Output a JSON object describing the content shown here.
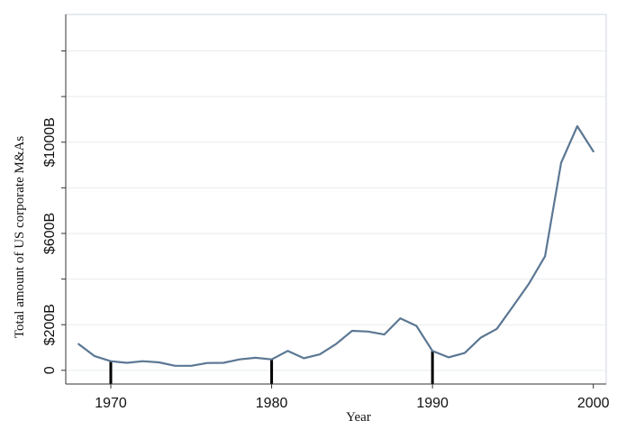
{
  "chart_data": {
    "type": "line",
    "title": "",
    "xlabel": "Year",
    "ylabel": "Total amount of US corporate M&As",
    "xlim": [
      1967.2,
      2000.8
    ],
    "ylim": [
      -60,
      1560
    ],
    "x_ticks": [
      {
        "value": 1970,
        "label": "1970"
      },
      {
        "value": 1980,
        "label": "1980"
      },
      {
        "value": 1990,
        "label": "1990"
      },
      {
        "value": 2000,
        "label": "2000"
      }
    ],
    "y_ticks": [
      {
        "value": 0,
        "label": "0"
      },
      {
        "value": 200,
        "label": "$200B"
      },
      {
        "value": 400,
        "label": ""
      },
      {
        "value": 600,
        "label": "$600B"
      },
      {
        "value": 800,
        "label": ""
      },
      {
        "value": 1000,
        "label": "$1000B"
      },
      {
        "value": 1200,
        "label": ""
      },
      {
        "value": 1400,
        "label": ""
      }
    ],
    "grid": true,
    "recession_markers": [
      1970,
      1980,
      1990
    ],
    "series": [
      {
        "color": "#5b7793",
        "x": [
          1968,
          1969,
          1970,
          1971,
          1972,
          1973,
          1974,
          1975,
          1976,
          1977,
          1978,
          1979,
          1980,
          1981,
          1982,
          1983,
          1984,
          1985,
          1986,
          1987,
          1988,
          1989,
          1990,
          1991,
          1992,
          1993,
          1994,
          1995,
          1996,
          1997,
          1998,
          1999,
          2000
        ],
        "y": [
          115,
          62,
          40,
          33,
          40,
          35,
          20,
          20,
          32,
          33,
          48,
          55,
          48,
          85,
          53,
          70,
          115,
          173,
          170,
          157,
          228,
          195,
          85,
          57,
          76,
          143,
          182,
          280,
          380,
          500,
          910,
          1070,
          960
        ]
      }
    ]
  }
}
